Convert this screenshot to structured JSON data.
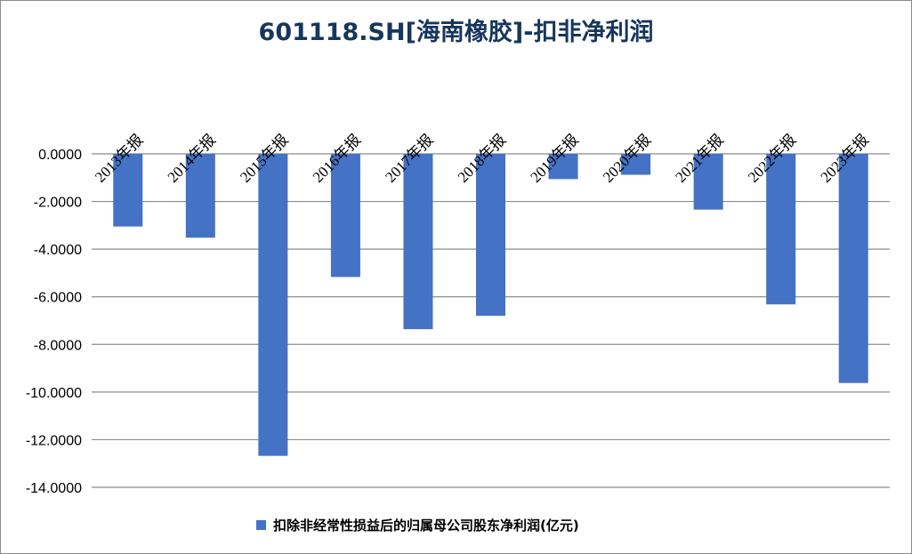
{
  "chart_data": {
    "type": "bar",
    "title": "601118.SH[海南橡胶]-扣非净利润",
    "categories": [
      "2013年报",
      "2014年报",
      "2015年报",
      "2016年报",
      "2017年报",
      "2018年报",
      "2019年报",
      "2020年报",
      "2021年报",
      "2022年报",
      "2023年报"
    ],
    "series": [
      {
        "name": "扣除非经常性损益后的归属母公司股东净利润(亿元)",
        "color": "#4472c4",
        "values": [
          -3.05,
          -3.52,
          -12.68,
          -5.17,
          -7.36,
          -6.8,
          -1.06,
          -0.88,
          -2.34,
          -6.32,
          -9.62
        ]
      }
    ],
    "yticks": [
      "0.0000",
      "-2.0000",
      "-4.0000",
      "-6.0000",
      "-8.0000",
      "-10.0000",
      "-12.0000",
      "-14.0000"
    ],
    "ylim": [
      -14,
      0
    ],
    "grid": true,
    "legend": "bottom"
  }
}
